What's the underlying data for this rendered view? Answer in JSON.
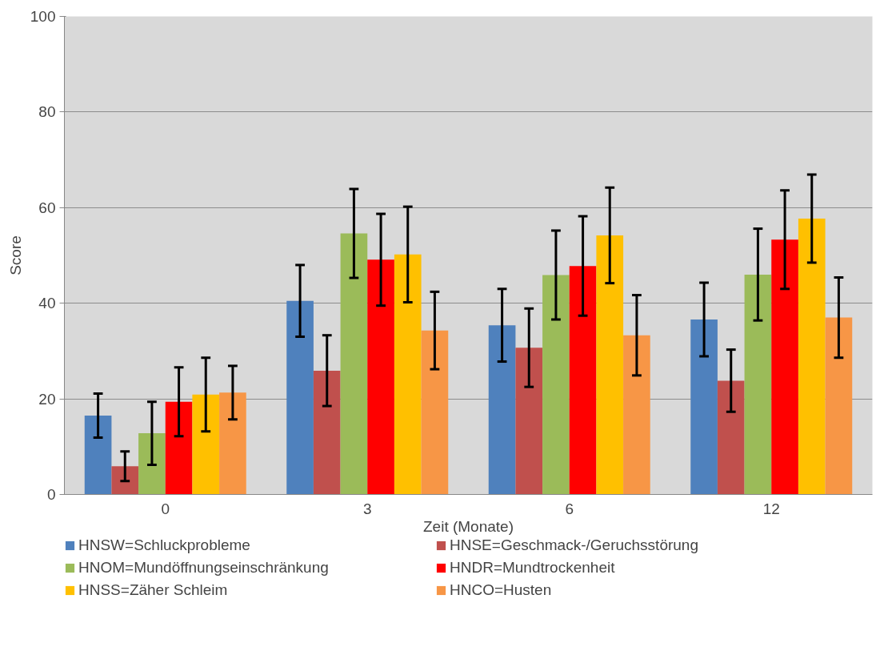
{
  "chart_data": {
    "type": "bar",
    "xlabel": "Zeit (Monate)",
    "ylabel": "Score",
    "categories": [
      "0",
      "3",
      "6",
      "12"
    ],
    "ylim": [
      0,
      100
    ],
    "yticks": [
      0,
      20,
      40,
      60,
      80,
      100
    ],
    "grid": "y",
    "legend": "bottom",
    "series": [
      {
        "name": "HNSW=Schluckprobleme",
        "color": "#4f81bd",
        "values": [
          16.5,
          40.5,
          35.4,
          36.6
        ],
        "errors": [
          4.6,
          7.5,
          7.6,
          7.7
        ]
      },
      {
        "name": "HNSE=Geschmack-/Geruchsstörung",
        "color": "#c0504d",
        "values": [
          5.9,
          25.9,
          30.7,
          23.8
        ],
        "errors": [
          3.1,
          7.4,
          8.2,
          6.5
        ]
      },
      {
        "name": "HNOM=Mundöffnungseinschränkung",
        "color": "#9bbb59",
        "values": [
          12.8,
          54.6,
          45.9,
          46.0
        ],
        "errors": [
          6.6,
          9.3,
          9.3,
          9.6
        ]
      },
      {
        "name": "HNDR=Mundtrockenheit",
        "color": "#ff0000",
        "values": [
          19.4,
          49.1,
          47.8,
          53.3
        ],
        "errors": [
          7.2,
          9.6,
          10.4,
          10.3
        ]
      },
      {
        "name": "HNSS=Zäher Schleim",
        "color": "#ffc000",
        "values": [
          20.9,
          50.2,
          54.2,
          57.7
        ],
        "errors": [
          7.7,
          10.0,
          10.0,
          9.2
        ]
      },
      {
        "name": "HNCO=Husten",
        "color": "#f79646",
        "values": [
          21.3,
          34.3,
          33.3,
          37.0
        ],
        "errors": [
          5.6,
          8.1,
          8.4,
          8.4
        ]
      }
    ]
  }
}
